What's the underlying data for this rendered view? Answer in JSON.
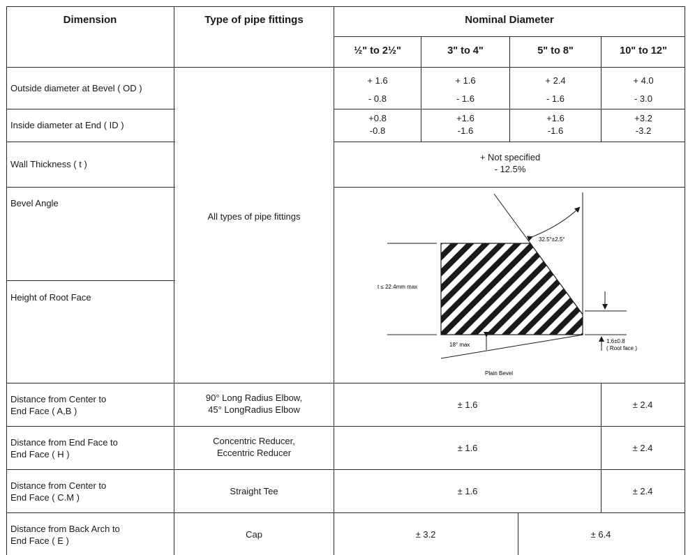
{
  "header": {
    "col_dimension": "Dimension",
    "col_type": "Type of pipe fittings",
    "col_nominal": "Nominal Diameter",
    "sizes": [
      "½\" to 2½\"",
      "3\" to 4\"",
      "5\" to 8\"",
      "10\" to 12\""
    ]
  },
  "type_all": "All types of pipe fittings",
  "rows": {
    "od": {
      "label": "Outside diameter at Bevel ( OD )",
      "plus": [
        "+ 1.6",
        "+ 1.6",
        "+ 2.4",
        "+ 4.0"
      ],
      "minus": [
        "- 0.8",
        "- 1.6",
        "- 1.6",
        "- 3.0"
      ]
    },
    "id": {
      "label": "Inside diameter at End ( ID )",
      "plus": [
        "+0.8",
        "+1.6",
        "+1.6",
        "+3.2"
      ],
      "minus": [
        "-0.8",
        "-1.6",
        "-1.6",
        "-3.2"
      ]
    },
    "wall": {
      "label": "Wall Thickness ( t )",
      "plus": "+ Not specified",
      "minus": "- 12.5%"
    },
    "bevel": {
      "label": "Bevel  Angle"
    },
    "root": {
      "label": "Height of Root Face"
    },
    "ab": {
      "label1": "Distance from Center to",
      "label2": "End Face ( A,B )",
      "type1": "90° Long Radius Elbow,",
      "type2": "45°  LongRadius Elbow",
      "v1": "± 1.6",
      "v2": "± 2.4"
    },
    "h": {
      "label1": "Distance from End Face to",
      "label2": "End Face ( H )",
      "type1": "Concentric Reducer,",
      "type2": "Eccentric Reducer",
      "v1": "± 1.6",
      "v2": "± 2.4"
    },
    "cm": {
      "label1": "Distance from Center to",
      "label2": "End Face ( C.M )",
      "type": "Straight Tee",
      "v1": "± 1.6",
      "v2": "± 2.4"
    },
    "e": {
      "label1": "Distance from Back Arch to",
      "label2": "End Face ( E )",
      "type": "Cap",
      "v1": "± 3.2",
      "v2": "± 6.4"
    }
  },
  "diagram": {
    "angle_label": "32.5°±2.5°",
    "t_label": "t ≤ 22.4mm max",
    "taper_label": "18° max",
    "root_label1": "1.6±0.8",
    "root_label2": "( Root face )",
    "caption": "Plain Bevel"
  }
}
